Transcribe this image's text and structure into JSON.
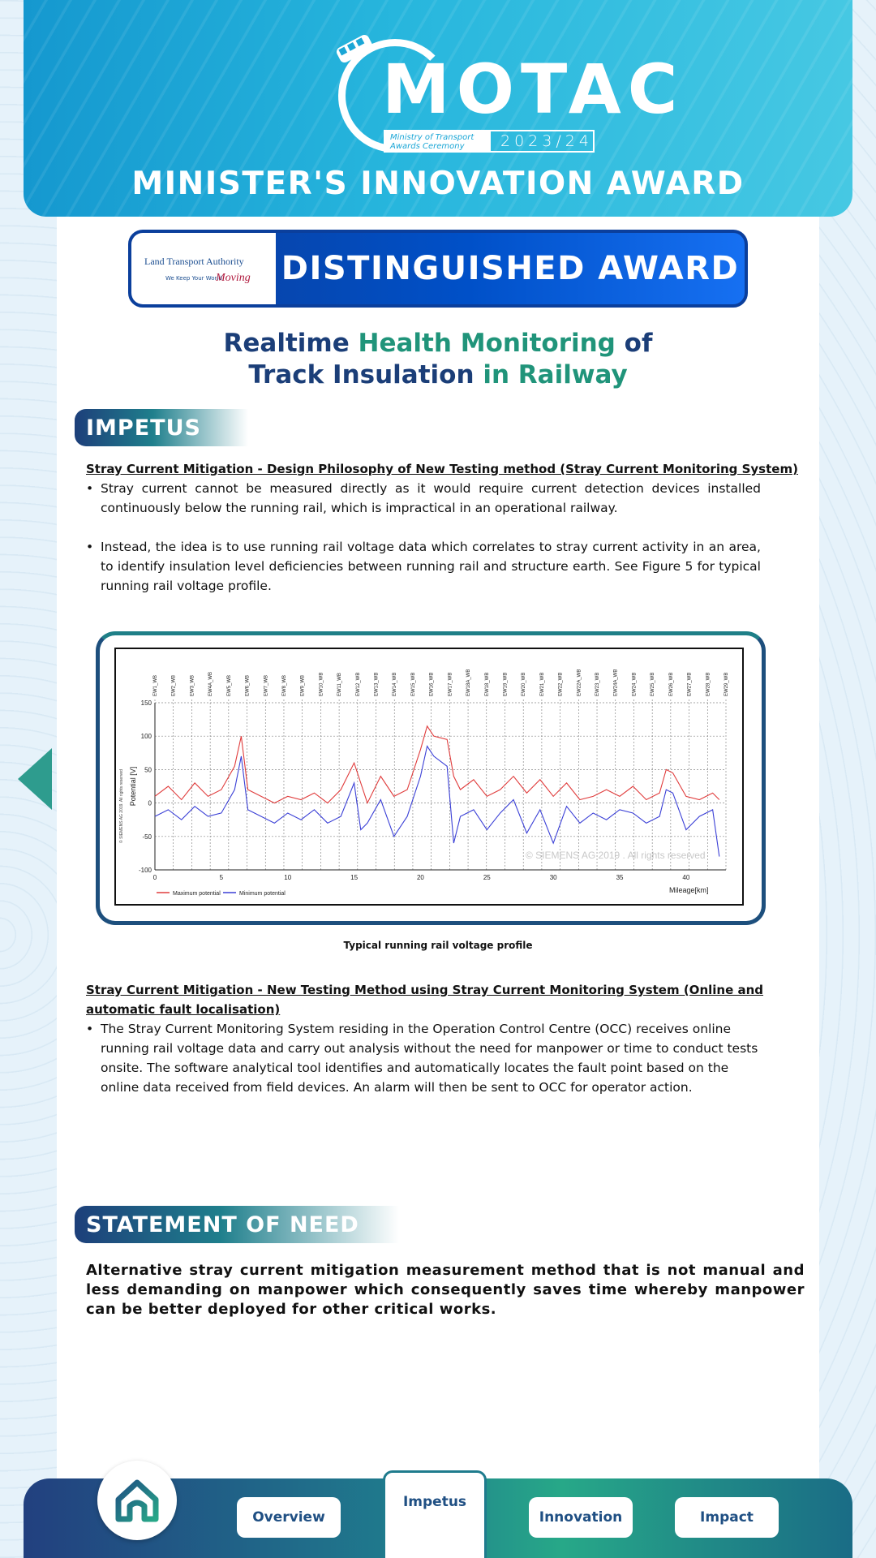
{
  "header": {
    "logo_text": "MOTAC",
    "logo_sub": "Ministry of Transport Awards Ceremony",
    "logo_year": "2023/24",
    "title": "MINISTER'S INNOVATION AWARD"
  },
  "award": {
    "org_line1": "Land Transport Authority",
    "org_line2": "We Keep Your World",
    "org_tagline": "Moving",
    "title": "DISTINGUISHED AWARD"
  },
  "project": {
    "title_part1": "Realtime ",
    "title_part2": "Health Monitoring",
    "title_part3": " of",
    "title_part4": "Track Insulation",
    "title_part5": " in Railway"
  },
  "impetus": {
    "heading": "IMPETUS",
    "sub1": "Stray Current Mitigation - Design Philosophy of New Testing method (Stray Current Monitoring System)",
    "bullet1": "Stray current cannot be measured directly as it would require current detection devices installed continuously below the running rail, which is impractical in an operational railway.",
    "bullet2": "Instead, the idea is to use running rail voltage data which correlates to stray current activity in an area, to identify insulation level deficiencies between running rail and structure earth. See Figure 5 for typical running rail voltage profile.",
    "caption": "Typical running rail voltage profile",
    "sub2": "Stray Current Mitigation - New Testing Method using Stray Current Monitoring System (Online and automatic fault localisation)",
    "bullet3": "The Stray Current Monitoring System residing in the Operation Control Centre (OCC) receives online running rail voltage data and carry out analysis without the need for manpower or time to conduct tests onsite. The software analytical tool identifies and automatically locates the fault point based on the online data received from field devices. An alarm will then be sent to OCC for operator action."
  },
  "need": {
    "heading": "STATEMENT OF NEED",
    "text": "Alternative stray current mitigation measurement method that is not manual and less demanding on manpower which consequently saves time whereby manpower can be better deployed for other critical works."
  },
  "nav": {
    "items": [
      "Overview",
      "Impetus",
      "Innovation",
      "Impact"
    ],
    "active": "Impetus",
    "home_icon": "home-icon"
  },
  "chart_data": {
    "type": "line",
    "xlabel": "Mileage[km]",
    "ylabel": "Potential [V]",
    "xlim": [
      0,
      43
    ],
    "ylim": [
      -100,
      150
    ],
    "xticks": [
      0,
      5,
      10,
      15,
      20,
      25,
      30,
      35,
      40
    ],
    "yticks": [
      -100,
      -50,
      0,
      50,
      100,
      150
    ],
    "watermark": "© SIEMENS AG 2019 . All rights reserved",
    "side_note": "© SIEMENS AG 2019. All rights reserved",
    "station_labels": [
      "EW1_WB",
      "EW2_WB",
      "EW3_WB",
      "EW4A_WB",
      "EW5_WB",
      "EW6_WB",
      "EW7_WB",
      "EW8_WB",
      "EW9_WB",
      "EW10_WB",
      "EW11_WB",
      "EW12_WB",
      "EW13_WB",
      "EW14_WB",
      "EW15_WB",
      "EW16_WB",
      "EW17_WB",
      "EW18A_WB",
      "EW18_WB",
      "EW19_WB",
      "EW20_WB",
      "EW21_WB",
      "EW22_WB",
      "EW22A_WB",
      "EW23_WB",
      "EW24A_WB",
      "EW24_WB",
      "EW25_WB",
      "EW26_WB",
      "EW27_WB",
      "EW28_WB",
      "EW29_WB"
    ],
    "series": [
      {
        "name": "Maximum potential",
        "color": "#e03c3c",
        "x": [
          0,
          1,
          2,
          3,
          4,
          5,
          6,
          6.5,
          7,
          8,
          9,
          10,
          11,
          12,
          13,
          14,
          15,
          15.5,
          16,
          17,
          18,
          19,
          20,
          20.5,
          21,
          22,
          22.5,
          23,
          24,
          25,
          26,
          27,
          28,
          29,
          30,
          31,
          32,
          33,
          34,
          35,
          36,
          37,
          38,
          38.5,
          39,
          40,
          41,
          42,
          42.5
        ],
        "values": [
          10,
          25,
          5,
          30,
          10,
          20,
          55,
          100,
          20,
          10,
          0,
          10,
          5,
          15,
          0,
          20,
          60,
          30,
          0,
          40,
          10,
          20,
          80,
          115,
          100,
          95,
          40,
          20,
          35,
          10,
          20,
          40,
          15,
          35,
          10,
          30,
          5,
          10,
          20,
          10,
          25,
          5,
          15,
          50,
          45,
          10,
          5,
          15,
          5
        ]
      },
      {
        "name": "Minimum potential",
        "color": "#3a3fd6",
        "x": [
          0,
          1,
          2,
          3,
          4,
          5,
          6,
          6.5,
          7,
          8,
          9,
          10,
          11,
          12,
          13,
          14,
          15,
          15.5,
          16,
          17,
          18,
          19,
          20,
          20.5,
          21,
          22,
          22.5,
          23,
          24,
          25,
          26,
          27,
          28,
          29,
          30,
          31,
          32,
          33,
          34,
          35,
          36,
          37,
          38,
          38.5,
          39,
          40,
          41,
          42,
          42.5
        ],
        "values": [
          -20,
          -10,
          -25,
          -5,
          -20,
          -15,
          20,
          70,
          -10,
          -20,
          -30,
          -15,
          -25,
          -10,
          -30,
          -20,
          30,
          -40,
          -30,
          5,
          -50,
          -20,
          40,
          85,
          70,
          55,
          -60,
          -20,
          -10,
          -40,
          -15,
          5,
          -45,
          -10,
          -60,
          -5,
          -30,
          -15,
          -25,
          -10,
          -15,
          -30,
          -20,
          20,
          15,
          -40,
          -20,
          -10,
          -80
        ]
      }
    ]
  }
}
